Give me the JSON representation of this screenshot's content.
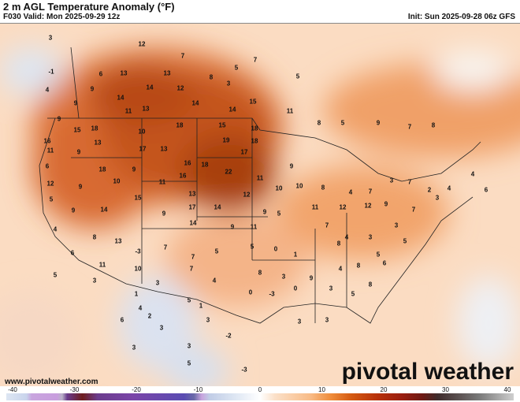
{
  "header": {
    "title": "2 m AGL Temperature Anomaly (°F)",
    "valid": "F030 Valid: Mon 2025-09-29 12z",
    "init": "Init: Sun 2025-09-28 06z GFS"
  },
  "footer": {
    "site": "www.pivotalweather.com",
    "logo": "pivotal weather"
  },
  "colorbar": {
    "ticks": [
      "-40",
      "-30",
      "-20",
      "-10",
      "0",
      "10",
      "20",
      "30",
      "40"
    ],
    "units": "°F",
    "range": [
      -40,
      40
    ]
  },
  "map": {
    "region": "North America / CONUS",
    "anomaly_labels": [
      "3",
      "12",
      "7",
      "-1",
      "6",
      "13",
      "13",
      "8",
      "5",
      "7",
      "5",
      "4",
      "9",
      "14",
      "14",
      "12",
      "3",
      "15",
      "14",
      "14",
      "13",
      "11",
      "9",
      "9",
      "15",
      "18",
      "10",
      "18",
      "15",
      "18",
      "11",
      "8",
      "5",
      "9",
      "7",
      "8",
      "16",
      "13",
      "17",
      "13",
      "19",
      "17",
      "18",
      "11",
      "9",
      "18",
      "9",
      "16",
      "18",
      "9",
      "22",
      "16",
      "11",
      "10",
      "6",
      "12",
      "15",
      "9",
      "13",
      "11",
      "10",
      "10",
      "8",
      "4",
      "7",
      "3",
      "7",
      "2",
      "4",
      "4",
      "6",
      "5",
      "9",
      "14",
      "9",
      "17",
      "14",
      "12",
      "9",
      "5",
      "11",
      "12",
      "12",
      "9",
      "7",
      "3",
      "4",
      "8",
      "14",
      "9",
      "11",
      "7",
      "4",
      "3",
      "3",
      "13",
      "6",
      "11",
      "-3",
      "7",
      "7",
      "5",
      "5",
      "0",
      "1",
      "8",
      "5",
      "5",
      "5",
      "10",
      "7",
      "4",
      "8",
      "3",
      "9",
      "4",
      "8",
      "6",
      "3",
      "3",
      "5",
      "0",
      "-3",
      "0",
      "3",
      "5",
      "8",
      "1",
      "4",
      "6",
      "2",
      "1",
      "3",
      "3",
      "3",
      "3",
      "-2",
      "5",
      "-3",
      "3",
      "3"
    ]
  },
  "colors": {
    "hot": "#a63c10",
    "warm": "#e88a4a",
    "mild": "#fbdcc2",
    "cool": "#c9d6ec"
  }
}
